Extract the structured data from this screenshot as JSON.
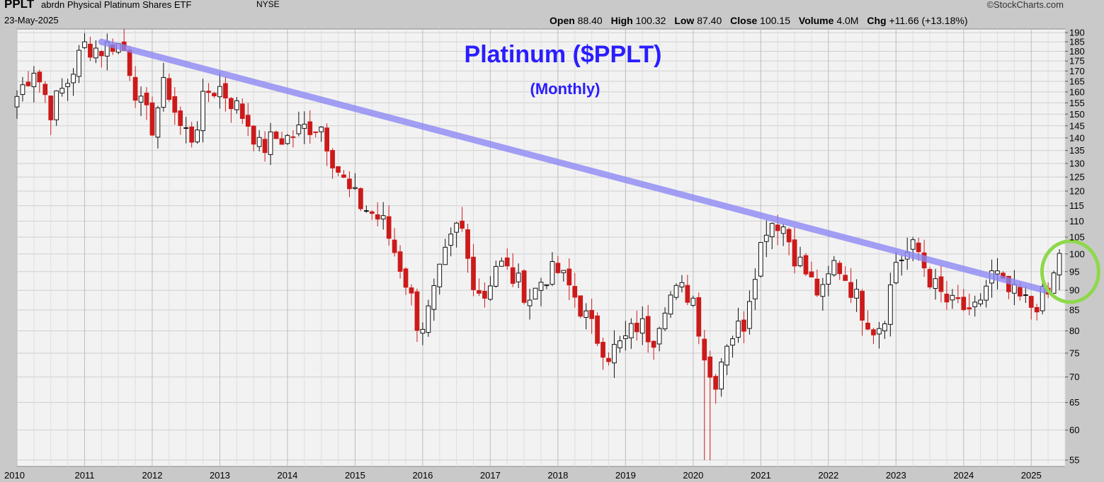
{
  "header": {
    "symbol": "PPLT",
    "name": "abrdn Physical Platinum Shares ETF",
    "exchange": "NYSE",
    "date": "23-May-2025",
    "brand": "©StockCharts.com",
    "open_label": "Open",
    "open": "88.40",
    "high_label": "High",
    "high": "100.32",
    "low_label": "Low",
    "low": "87.40",
    "close_label": "Close",
    "close": "100.15",
    "volume_label": "Volume",
    "volume": "4.0M",
    "chg_label": "Chg",
    "chg": "+11.66 (+13.18%)"
  },
  "colors": {
    "up": "#ffffff",
    "down": "#cc1a1a",
    "trendline": "#8c87f5",
    "highlight": "#8ed94a",
    "title": "#2a1dff",
    "plot_bg": "#f2f2f2"
  },
  "chart_data": {
    "type": "candlestick",
    "title": "Platinum ($PPLT)",
    "subtitle": "(Monthly)",
    "x_tick_labels": [
      "2010",
      "2011",
      "2012",
      "2013",
      "2014",
      "2015",
      "2016",
      "2017",
      "2018",
      "2019",
      "2020",
      "2021",
      "2022",
      "2023",
      "2024",
      "2025"
    ],
    "y_tick_labels": [
      190,
      185,
      180,
      175,
      170,
      165,
      160,
      155,
      150,
      145,
      140,
      135,
      130,
      125,
      120,
      115,
      110,
      105,
      100,
      95,
      90,
      85,
      80,
      75,
      70,
      65,
      60,
      55
    ],
    "y_scale": "log",
    "ylim": [
      54,
      192
    ],
    "xlim": [
      2010.0,
      2025.5
    ],
    "grid": true,
    "trendline": {
      "start": [
        2011.25,
        185
      ],
      "end": [
        2025.2,
        90
      ]
    },
    "highlight_circle_at": [
      2025.4,
      95
    ],
    "close_anchors": [
      [
        2010.0,
        158
      ],
      [
        2010.25,
        172
      ],
      [
        2010.5,
        152
      ],
      [
        2010.75,
        165
      ],
      [
        2011.0,
        183
      ],
      [
        2011.25,
        181
      ],
      [
        2011.45,
        185
      ],
      [
        2011.6,
        180
      ],
      [
        2011.8,
        155
      ],
      [
        2012.0,
        145
      ],
      [
        2012.2,
        165
      ],
      [
        2012.4,
        145
      ],
      [
        2012.6,
        140
      ],
      [
        2012.8,
        160
      ],
      [
        2013.0,
        162
      ],
      [
        2013.2,
        155
      ],
      [
        2013.45,
        145
      ],
      [
        2013.6,
        135
      ],
      [
        2013.8,
        140
      ],
      [
        2014.0,
        140
      ],
      [
        2014.3,
        145
      ],
      [
        2014.5,
        145
      ],
      [
        2014.7,
        130
      ],
      [
        2014.9,
        120
      ],
      [
        2015.1,
        115
      ],
      [
        2015.4,
        110
      ],
      [
        2015.6,
        100
      ],
      [
        2015.8,
        90
      ],
      [
        2015.95,
        80
      ],
      [
        2016.1,
        85
      ],
      [
        2016.35,
        100
      ],
      [
        2016.55,
        110
      ],
      [
        2016.7,
        95
      ],
      [
        2016.9,
        88
      ],
      [
        2017.1,
        98
      ],
      [
        2017.4,
        92
      ],
      [
        2017.6,
        88
      ],
      [
        2017.8,
        94
      ],
      [
        2018.0,
        95
      ],
      [
        2018.2,
        90
      ],
      [
        2018.45,
        82
      ],
      [
        2018.6,
        78
      ],
      [
        2018.75,
        75
      ],
      [
        2018.95,
        77
      ],
      [
        2019.2,
        82
      ],
      [
        2019.4,
        78
      ],
      [
        2019.6,
        88
      ],
      [
        2019.85,
        90
      ],
      [
        2020.0,
        88
      ],
      [
        2020.2,
        72
      ],
      [
        2020.3,
        68
      ],
      [
        2020.5,
        78
      ],
      [
        2020.75,
        82
      ],
      [
        2020.9,
        95
      ],
      [
        2021.1,
        110
      ],
      [
        2021.3,
        110
      ],
      [
        2021.5,
        100
      ],
      [
        2021.75,
        92
      ],
      [
        2021.9,
        88
      ],
      [
        2022.1,
        98
      ],
      [
        2022.3,
        92
      ],
      [
        2022.5,
        85
      ],
      [
        2022.7,
        80
      ],
      [
        2022.85,
        85
      ],
      [
        2023.0,
        98
      ],
      [
        2023.15,
        100
      ],
      [
        2023.3,
        102
      ],
      [
        2023.45,
        95
      ],
      [
        2023.6,
        90
      ],
      [
        2023.8,
        86
      ],
      [
        2023.95,
        87
      ],
      [
        2024.1,
        82
      ],
      [
        2024.3,
        90
      ],
      [
        2024.45,
        95
      ],
      [
        2024.6,
        90
      ],
      [
        2024.8,
        88
      ],
      [
        2025.0,
        86
      ],
      [
        2025.15,
        88
      ],
      [
        2025.3,
        89
      ],
      [
        2025.38,
        100.15
      ]
    ]
  }
}
